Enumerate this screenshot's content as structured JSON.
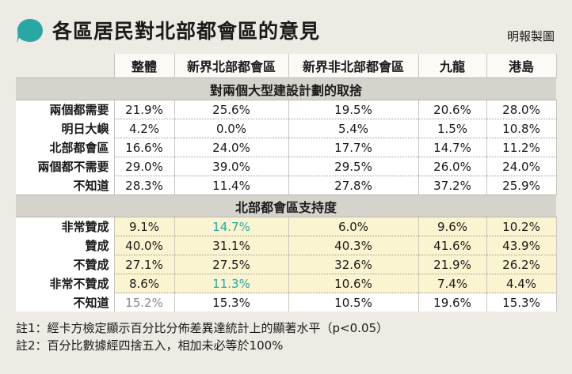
{
  "title": "各區居民對北部都會區的意見",
  "credit": "明報製圖",
  "accent_color": "#2aa7a5",
  "columns": [
    "整體",
    "新界北部都會區",
    "新界非北部都會區",
    "九龍",
    "港島"
  ],
  "section1": {
    "title": "對兩個大型建設計劃的取捨",
    "rows": [
      {
        "label": "兩個都需要",
        "values": [
          "21.9%",
          "25.6%",
          "19.5%",
          "20.6%",
          "28.0%"
        ]
      },
      {
        "label": "明日大嶼",
        "values": [
          "4.2%",
          "0.0%",
          "5.4%",
          "1.5%",
          "10.8%"
        ]
      },
      {
        "label": "北部都會區",
        "values": [
          "16.6%",
          "24.0%",
          "17.7%",
          "14.7%",
          "11.2%"
        ]
      },
      {
        "label": "兩個都不需要",
        "values": [
          "29.0%",
          "39.0%",
          "29.5%",
          "26.0%",
          "24.0%"
        ]
      },
      {
        "label": "不知道",
        "values": [
          "28.3%",
          "11.4%",
          "27.8%",
          "37.2%",
          "25.9%"
        ]
      }
    ]
  },
  "section2": {
    "title": "北部都會區支持度",
    "rows": [
      {
        "label": "非常贊成",
        "values": [
          "9.1%",
          "14.7%",
          "6.0%",
          "9.6%",
          "10.2%"
        ]
      },
      {
        "label": "贊成",
        "values": [
          "40.0%",
          "31.1%",
          "40.3%",
          "41.6%",
          "43.9%"
        ]
      },
      {
        "label": "不贊成",
        "values": [
          "27.1%",
          "27.5%",
          "32.6%",
          "21.9%",
          "26.2%"
        ]
      },
      {
        "label": "非常不贊成",
        "values": [
          "8.6%",
          "11.3%",
          "10.6%",
          "7.4%",
          "4.4%"
        ]
      },
      {
        "label": "不知道",
        "values": [
          "15.2%",
          "15.3%",
          "10.5%",
          "19.6%",
          "15.3%"
        ]
      }
    ]
  },
  "notes": [
    "註1：經卡方檢定顯示百分比分佈差異達統計上的顯著水平（p<0.05）",
    "註2：百分比數據經四捨五入，相加未必等於100%"
  ]
}
